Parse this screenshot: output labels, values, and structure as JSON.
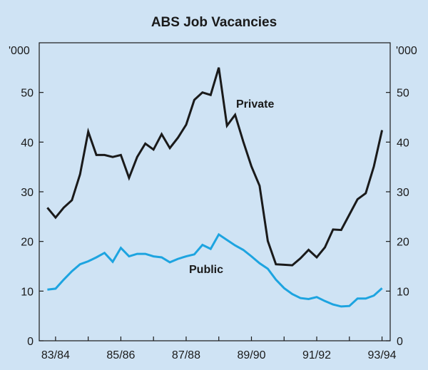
{
  "chart_data": {
    "type": "line",
    "title": "ABS Job Vacancies",
    "y_unit_left": "'000",
    "y_unit_right": "'000",
    "ylim": [
      0,
      60
    ],
    "yticks": [
      0,
      10,
      20,
      30,
      40,
      50
    ],
    "x_tick_labels": [
      "83/84",
      "85/86",
      "87/88",
      "89/90",
      "91/92",
      "93/94"
    ],
    "xlim": [
      1983.5,
      1994.25
    ],
    "grid": false,
    "colors": {
      "private": "#1a1a1a",
      "public": "#1da4e0",
      "panel_bg": "#cfe3f4",
      "axis": "#1a1a1a"
    },
    "series": [
      {
        "name": "Private",
        "x": [
          1983.75,
          1984.0,
          1984.25,
          1984.5,
          1984.75,
          1985.0,
          1985.25,
          1985.5,
          1985.75,
          1986.0,
          1986.25,
          1986.5,
          1986.75,
          1987.0,
          1987.25,
          1987.5,
          1987.75,
          1988.0,
          1988.25,
          1988.5,
          1988.75,
          1989.0,
          1989.25,
          1989.5,
          1989.75,
          1990.0,
          1990.25,
          1990.5,
          1990.75,
          1991.0,
          1991.25,
          1991.5,
          1991.75,
          1992.0,
          1992.25,
          1992.5,
          1992.75,
          1993.0,
          1993.25,
          1993.5,
          1993.75,
          1994.0
        ],
        "values": [
          26.8,
          24.8,
          26.8,
          28.3,
          33.5,
          42.1,
          37.4,
          37.4,
          37.0,
          37.4,
          32.8,
          37.0,
          39.7,
          38.5,
          41.6,
          38.8,
          40.9,
          43.5,
          48.5,
          50.0,
          49.5,
          55.0,
          43.3,
          45.5,
          40.1,
          35.1,
          31.2,
          20.1,
          15.4,
          15.3,
          15.2,
          16.6,
          18.3,
          16.8,
          18.8,
          22.4,
          22.3,
          25.4,
          28.5,
          29.7,
          35.1,
          42.4
        ]
      },
      {
        "name": "Public",
        "x": [
          1983.75,
          1984.0,
          1984.25,
          1984.5,
          1984.75,
          1985.0,
          1985.25,
          1985.5,
          1985.75,
          1986.0,
          1986.25,
          1986.5,
          1986.75,
          1987.0,
          1987.25,
          1987.5,
          1987.75,
          1988.0,
          1988.25,
          1988.5,
          1988.75,
          1989.0,
          1989.25,
          1989.5,
          1989.75,
          1990.0,
          1990.25,
          1990.5,
          1990.75,
          1991.0,
          1991.25,
          1991.5,
          1991.75,
          1992.0,
          1992.25,
          1992.5,
          1992.75,
          1993.0,
          1993.25,
          1993.5,
          1993.75,
          1994.0
        ],
        "values": [
          10.3,
          10.5,
          12.3,
          14.0,
          15.4,
          16.0,
          16.8,
          17.7,
          15.9,
          18.7,
          17.0,
          17.5,
          17.5,
          17.0,
          16.8,
          15.8,
          16.5,
          17.0,
          17.4,
          19.3,
          18.5,
          21.4,
          20.3,
          19.2,
          18.3,
          17.0,
          15.6,
          14.5,
          12.3,
          10.6,
          9.4,
          8.6,
          8.4,
          8.8,
          8.0,
          7.3,
          6.9,
          7.0,
          8.5,
          8.5,
          9.1,
          10.6
        ]
      }
    ]
  }
}
